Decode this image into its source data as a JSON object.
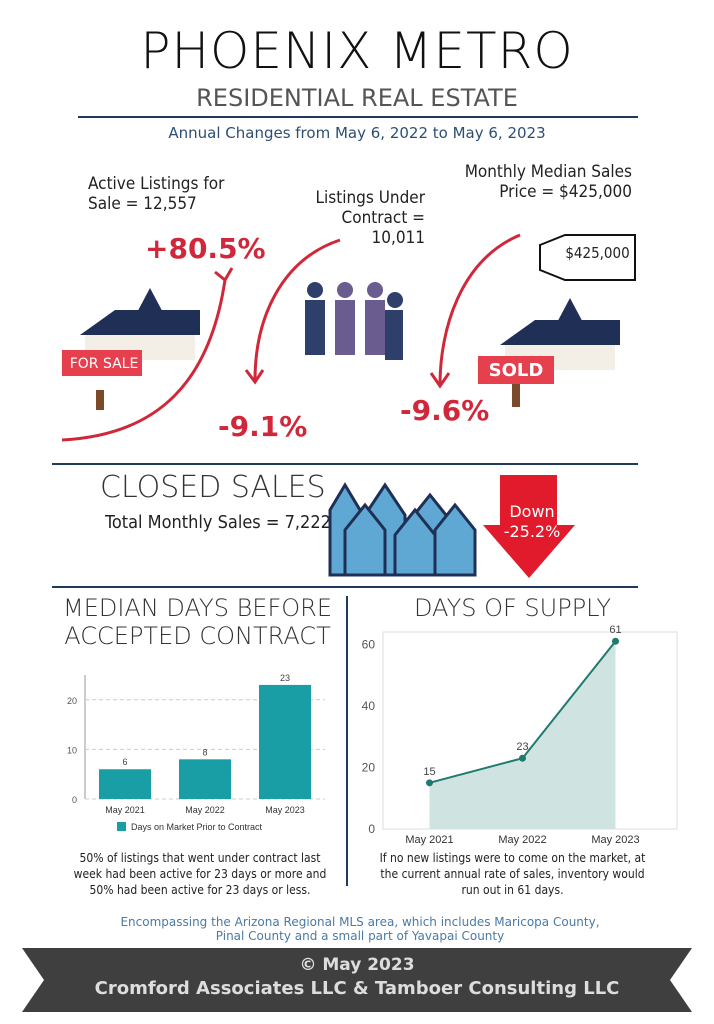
{
  "header": {
    "title": "PHOENIX METRO",
    "subtitle": "RESIDENTIAL REAL ESTATE",
    "period": "Annual Changes from May 6, 2022 to May 6, 2023"
  },
  "stats": [
    {
      "label": "Active Listings for Sale = 12,557",
      "change": "+80.5%",
      "sign": "FOR SALE"
    },
    {
      "label": "Listings Under Contract = 10,011",
      "change": "-9.1%"
    },
    {
      "label": "Monthly Median Sales Price = $425,000",
      "change": "-9.6%",
      "tag": "$425,000",
      "sign": "SOLD"
    }
  ],
  "closed_sales": {
    "title": "CLOSED SALES",
    "label": "Total Monthly Sales = 7,222",
    "direction": "Down",
    "change": "-25.2%"
  },
  "chart_data": [
    {
      "type": "bar",
      "title": "MEDIAN DAYS BEFORE ACCEPTED CONTRACT",
      "categories": [
        "May 2021",
        "May 2022",
        "May 2023"
      ],
      "series": [
        {
          "name": "Days on Market Prior to Contract",
          "color": "#1a9ea5",
          "values": [
            6,
            8,
            23
          ]
        }
      ],
      "ylim": [
        0,
        25
      ],
      "yticks": [
        0,
        10,
        20
      ],
      "grid": true,
      "note": "50% of listings that went under contract last week had been active for 23 days or more and 50% had been active for 23 days or less."
    },
    {
      "type": "area",
      "title": "DAYS OF SUPPLY",
      "categories": [
        "May 2021",
        "May 2022",
        "May 2023"
      ],
      "series": [
        {
          "name": "Days of Supply",
          "color": "#1f7a6f",
          "values": [
            15,
            23,
            61
          ]
        }
      ],
      "ylim": [
        0,
        64
      ],
      "yticks": [
        0,
        20,
        40,
        60
      ],
      "grid": false,
      "note": "If no new listings were to come on the market, at the current annual rate of sales, inventory would run out in 61 days."
    }
  ],
  "footer": {
    "note": "Encompassing the Arizona Regional MLS area, which includes Maricopa County, Pinal County and a small part of Yavapai County",
    "copyright": "© May 2023",
    "credit": "Cromford Associates LLC & Tamboer Consulting LLC"
  }
}
